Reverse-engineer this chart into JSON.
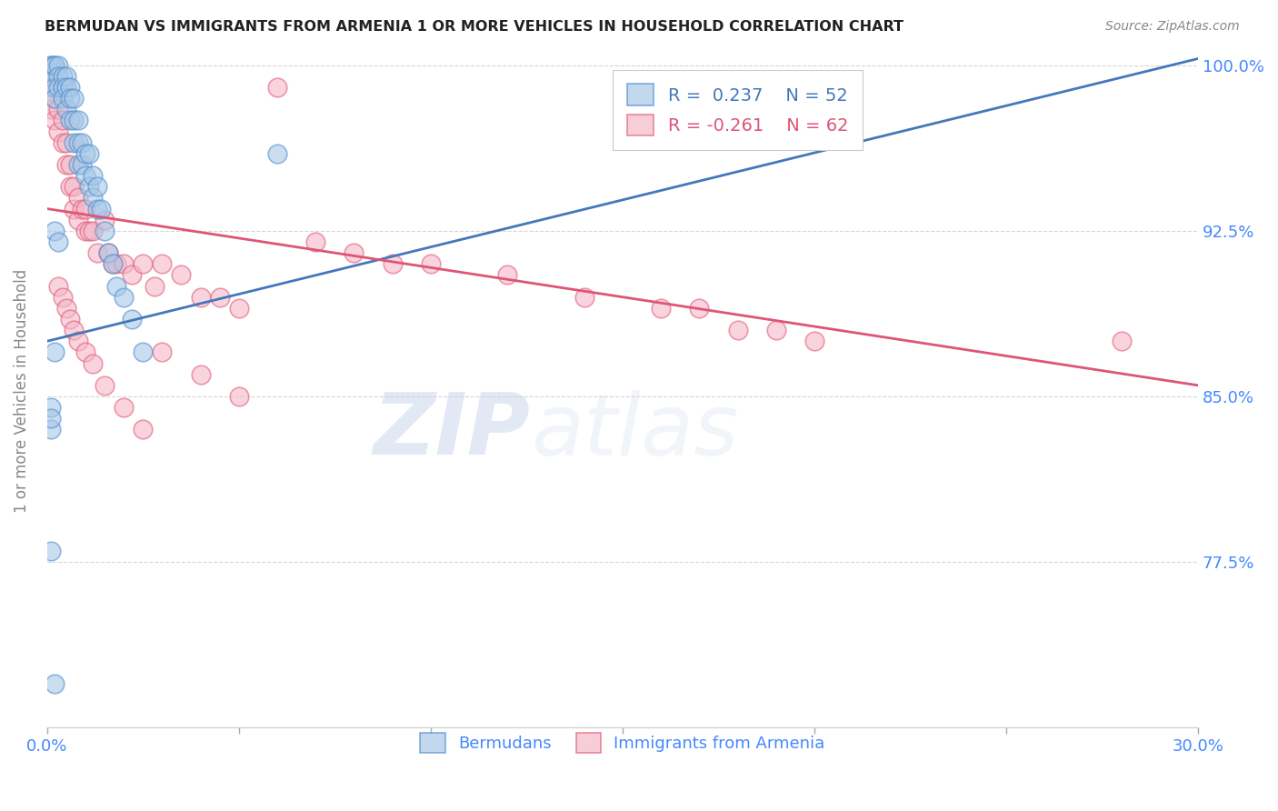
{
  "title": "BERMUDAN VS IMMIGRANTS FROM ARMENIA 1 OR MORE VEHICLES IN HOUSEHOLD CORRELATION CHART",
  "source": "Source: ZipAtlas.com",
  "ylabel": "1 or more Vehicles in Household",
  "x_min": 0.0,
  "x_max": 0.3,
  "y_min": 0.7,
  "y_max": 1.005,
  "x_ticks": [
    0.0,
    0.05,
    0.1,
    0.15,
    0.2,
    0.25,
    0.3
  ],
  "x_tick_labels": [
    "0.0%",
    "",
    "",
    "",
    "",
    "",
    "30.0%"
  ],
  "y_ticks": [
    0.775,
    0.85,
    0.925,
    1.0
  ],
  "y_tick_labels": [
    "77.5%",
    "85.0%",
    "92.5%",
    "100.0%"
  ],
  "blue_color": "#a8c8e8",
  "pink_color": "#f5b8c8",
  "blue_edge_color": "#5590cc",
  "pink_edge_color": "#e0607a",
  "blue_line_color": "#4477bb",
  "pink_line_color": "#dd5577",
  "label_color": "#4488ff",
  "blue_line_x0": 0.0,
  "blue_line_y0": 0.875,
  "blue_line_x1": 0.3,
  "blue_line_y1": 1.003,
  "pink_line_x0": 0.0,
  "pink_line_y0": 0.935,
  "pink_line_x1": 0.3,
  "pink_line_y1": 0.855,
  "blue_x": [
    0.001,
    0.001,
    0.001,
    0.002,
    0.002,
    0.002,
    0.002,
    0.003,
    0.003,
    0.003,
    0.004,
    0.004,
    0.004,
    0.005,
    0.005,
    0.005,
    0.006,
    0.006,
    0.006,
    0.007,
    0.007,
    0.007,
    0.008,
    0.008,
    0.008,
    0.009,
    0.009,
    0.01,
    0.01,
    0.011,
    0.011,
    0.012,
    0.012,
    0.013,
    0.013,
    0.014,
    0.015,
    0.016,
    0.017,
    0.018,
    0.02,
    0.022,
    0.025,
    0.001,
    0.001,
    0.002,
    0.003,
    0.001,
    0.001,
    0.002,
    0.06,
    0.002
  ],
  "blue_y": [
    1.0,
    1.0,
    0.995,
    1.0,
    1.0,
    0.99,
    0.985,
    1.0,
    0.995,
    0.99,
    0.995,
    0.99,
    0.985,
    0.995,
    0.99,
    0.98,
    0.99,
    0.985,
    0.975,
    0.985,
    0.975,
    0.965,
    0.975,
    0.965,
    0.955,
    0.965,
    0.955,
    0.96,
    0.95,
    0.96,
    0.945,
    0.95,
    0.94,
    0.945,
    0.935,
    0.935,
    0.925,
    0.915,
    0.91,
    0.9,
    0.895,
    0.885,
    0.87,
    0.845,
    0.835,
    0.925,
    0.92,
    0.84,
    0.78,
    0.72,
    0.96,
    0.87
  ],
  "pink_x": [
    0.001,
    0.001,
    0.002,
    0.002,
    0.003,
    0.003,
    0.004,
    0.004,
    0.005,
    0.005,
    0.006,
    0.006,
    0.007,
    0.007,
    0.008,
    0.008,
    0.009,
    0.01,
    0.01,
    0.011,
    0.012,
    0.013,
    0.015,
    0.016,
    0.017,
    0.018,
    0.02,
    0.022,
    0.025,
    0.028,
    0.03,
    0.035,
    0.04,
    0.045,
    0.05,
    0.06,
    0.07,
    0.08,
    0.09,
    0.1,
    0.12,
    0.14,
    0.16,
    0.17,
    0.18,
    0.19,
    0.2,
    0.003,
    0.004,
    0.005,
    0.006,
    0.007,
    0.008,
    0.01,
    0.012,
    0.015,
    0.02,
    0.025,
    0.03,
    0.04,
    0.28,
    0.05
  ],
  "pink_y": [
    0.99,
    0.98,
    0.985,
    0.975,
    0.98,
    0.97,
    0.975,
    0.965,
    0.965,
    0.955,
    0.955,
    0.945,
    0.945,
    0.935,
    0.94,
    0.93,
    0.935,
    0.935,
    0.925,
    0.925,
    0.925,
    0.915,
    0.93,
    0.915,
    0.91,
    0.91,
    0.91,
    0.905,
    0.91,
    0.9,
    0.91,
    0.905,
    0.895,
    0.895,
    0.89,
    0.99,
    0.92,
    0.915,
    0.91,
    0.91,
    0.905,
    0.895,
    0.89,
    0.89,
    0.88,
    0.88,
    0.875,
    0.9,
    0.895,
    0.89,
    0.885,
    0.88,
    0.875,
    0.87,
    0.865,
    0.855,
    0.845,
    0.835,
    0.87,
    0.86,
    0.875,
    0.85
  ]
}
